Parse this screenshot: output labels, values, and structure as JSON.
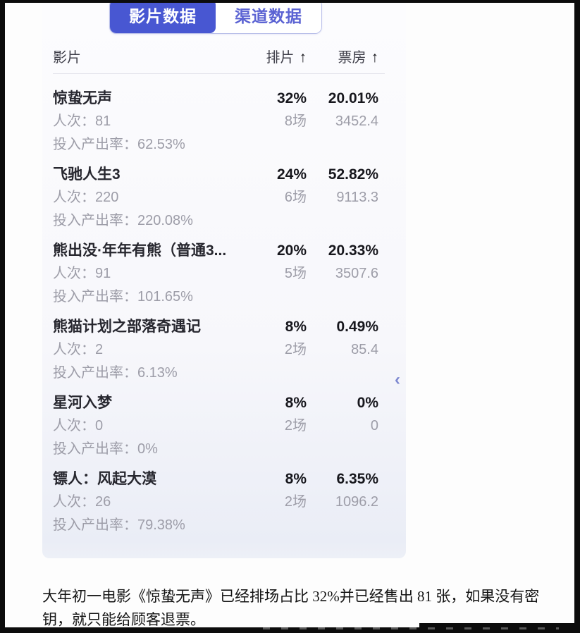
{
  "tabs": {
    "film": "影片数据",
    "channel": "渠道数据"
  },
  "table": {
    "col_film": "影片",
    "col_scheduling": "排片",
    "col_box_office": "票房",
    "sort_arrow": "↑",
    "rows": [
      {
        "title": "惊蛰无声",
        "scheduling_pct": "32%",
        "box_office_pct": "20.01%",
        "attendance_label": "人次：",
        "attendance_value": "81",
        "sessions": "8场",
        "box_office_amount": "3452.4",
        "roi_label": "投入产出率：",
        "roi_value": "62.53%"
      },
      {
        "title": "飞驰人生3",
        "scheduling_pct": "24%",
        "box_office_pct": "52.82%",
        "attendance_label": "人次：",
        "attendance_value": "220",
        "sessions": "6场",
        "box_office_amount": "9113.3",
        "roi_label": "投入产出率：",
        "roi_value": "220.08%"
      },
      {
        "title": "熊出没·年年有熊（普通3...",
        "scheduling_pct": "20%",
        "box_office_pct": "20.33%",
        "attendance_label": "人次：",
        "attendance_value": "91",
        "sessions": "5场",
        "box_office_amount": "3507.6",
        "roi_label": "投入产出率：",
        "roi_value": "101.65%"
      },
      {
        "title": "熊猫计划之部落奇遇记",
        "scheduling_pct": "8%",
        "box_office_pct": "0.49%",
        "attendance_label": "人次：",
        "attendance_value": "2",
        "sessions": "2场",
        "box_office_amount": "85.4",
        "roi_label": "投入产出率：",
        "roi_value": "6.13%"
      },
      {
        "title": "星河入梦",
        "scheduling_pct": "8%",
        "box_office_pct": "0%",
        "attendance_label": "人次：",
        "attendance_value": "0",
        "sessions": "2场",
        "box_office_amount": "0",
        "roi_label": "投入产出率：",
        "roi_value": "0%"
      },
      {
        "title": "镖人：风起大漠",
        "scheduling_pct": "8%",
        "box_office_pct": "6.35%",
        "attendance_label": "人次：",
        "attendance_value": "26",
        "sessions": "2场",
        "box_office_amount": "1096.2",
        "roi_label": "投入产出率：",
        "roi_value": "79.38%"
      }
    ]
  },
  "collapse_icon": "‹",
  "caption": "大年初一电影《惊蛰无声》已经排场占比 32%并已经售出 81 张，如果没有密钥，就只能给顾客退票。",
  "colors": {
    "active_tab_bg": "#4857d2",
    "inactive_tab_text": "#5b63d3",
    "muted_text": "#9d9da8",
    "title_text": "#27272f",
    "panel_bg_bottom": "#eaedf6",
    "chevron": "#7d88d0",
    "frame": "#0c0c0c"
  }
}
